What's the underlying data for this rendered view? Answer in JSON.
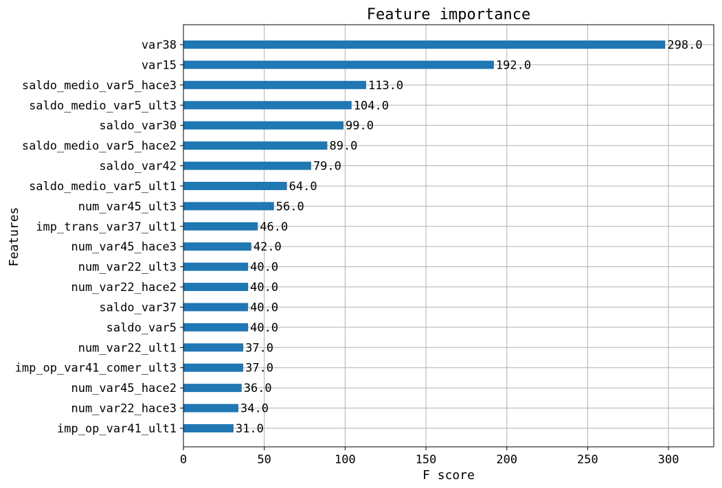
{
  "chart_data": {
    "type": "bar",
    "orientation": "horizontal",
    "title": "Feature importance",
    "xlabel": "F score",
    "ylabel": "Features",
    "xlim": [
      0,
      328
    ],
    "xticks": [
      0,
      50,
      100,
      150,
      200,
      250,
      300
    ],
    "grid": true,
    "bar_color": "#1f77b4",
    "categories": [
      "var38",
      "var15",
      "saldo_medio_var5_hace3",
      "saldo_medio_var5_ult3",
      "saldo_var30",
      "saldo_medio_var5_hace2",
      "saldo_var42",
      "saldo_medio_var5_ult1",
      "num_var45_ult3",
      "imp_trans_var37_ult1",
      "num_var45_hace3",
      "num_var22_ult3",
      "num_var22_hace2",
      "saldo_var37",
      "saldo_var5",
      "num_var22_ult1",
      "imp_op_var41_comer_ult3",
      "num_var45_hace2",
      "num_var22_hace3",
      "imp_op_var41_ult1"
    ],
    "values": [
      298.0,
      192.0,
      113.0,
      104.0,
      99.0,
      89.0,
      79.0,
      64.0,
      56.0,
      46.0,
      42.0,
      40.0,
      40.0,
      40.0,
      40.0,
      37.0,
      37.0,
      36.0,
      34.0,
      31.0
    ],
    "value_labels": [
      "298.0",
      "192.0",
      "113.0",
      "104.0",
      "99.0",
      "89.0",
      "79.0",
      "64.0",
      "56.0",
      "46.0",
      "42.0",
      "40.0",
      "40.0",
      "40.0",
      "40.0",
      "37.0",
      "37.0",
      "36.0",
      "34.0",
      "31.0"
    ]
  }
}
